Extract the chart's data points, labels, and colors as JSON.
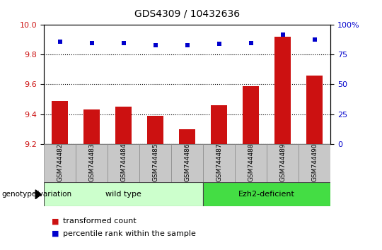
{
  "title": "GDS4309 / 10432636",
  "samples": [
    "GSM744482",
    "GSM744483",
    "GSM744484",
    "GSM744485",
    "GSM744486",
    "GSM744487",
    "GSM744488",
    "GSM744489",
    "GSM744490"
  ],
  "transformed_count": [
    9.49,
    9.43,
    9.45,
    9.39,
    9.3,
    9.46,
    9.59,
    9.92,
    9.66
  ],
  "percentile_rank": [
    86,
    85,
    85,
    83,
    83,
    84,
    85,
    92,
    88
  ],
  "ylim_left": [
    9.2,
    10.0
  ],
  "ylim_right": [
    0,
    100
  ],
  "yticks_left": [
    9.2,
    9.4,
    9.6,
    9.8,
    10.0
  ],
  "yticks_right": [
    0,
    25,
    50,
    75,
    100
  ],
  "ytick_right_labels": [
    "0",
    "25",
    "50",
    "75",
    "100%"
  ],
  "bar_color": "#cc1111",
  "dot_color": "#0000cc",
  "bar_width": 0.5,
  "groups": [
    {
      "label": "wild type",
      "indices": [
        0,
        1,
        2,
        3,
        4
      ]
    },
    {
      "label": "Ezh2-deficient",
      "indices": [
        5,
        6,
        7,
        8
      ]
    }
  ],
  "group_colors": [
    "#ccffcc",
    "#44dd44"
  ],
  "group_label_prefix": "genotype/variation",
  "legend_bar_label": "transformed count",
  "legend_dot_label": "percentile rank within the sample",
  "background_color": "#ffffff",
  "tick_area_color": "#c8c8c8",
  "tick_area_border": "#888888"
}
